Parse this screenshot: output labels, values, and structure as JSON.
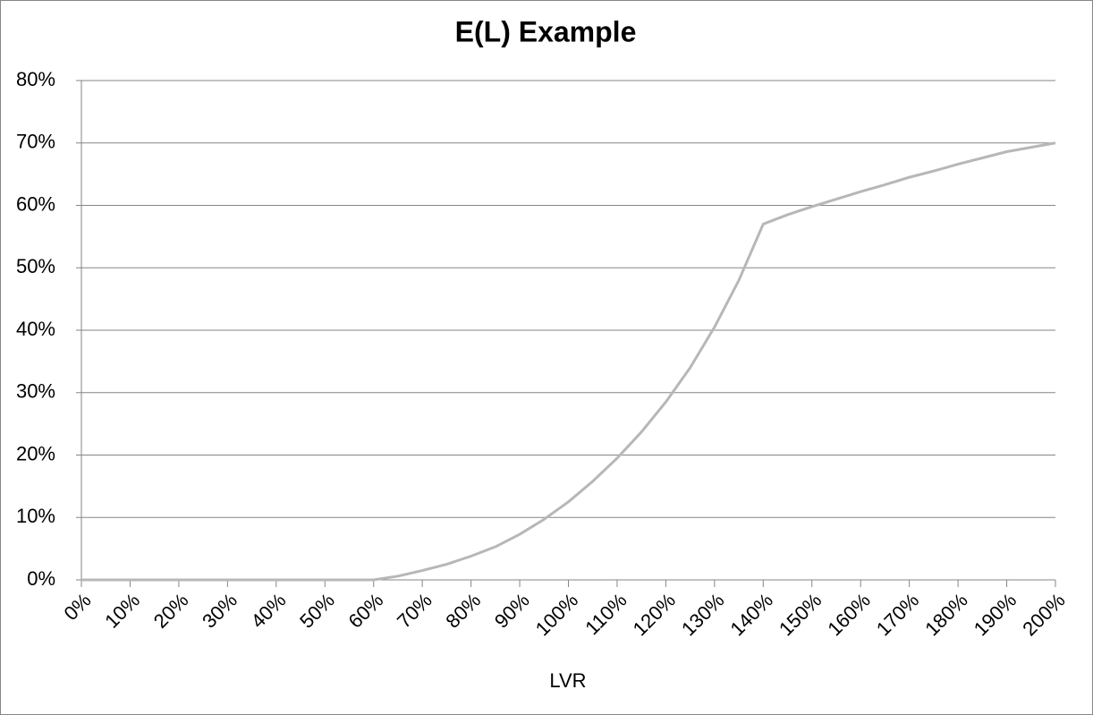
{
  "chart_data": {
    "type": "line",
    "title": "E(L) Example",
    "x_label": "LVR",
    "x": [
      0,
      5,
      10,
      15,
      20,
      25,
      30,
      35,
      40,
      45,
      50,
      55,
      60,
      65,
      70,
      75,
      80,
      85,
      90,
      95,
      100,
      105,
      110,
      115,
      120,
      125,
      130,
      135,
      140,
      145,
      150,
      155,
      160,
      165,
      170,
      175,
      180,
      185,
      190,
      195,
      200
    ],
    "series": [
      {
        "name": "E(L)",
        "color": "#b7b7b7",
        "values": [
          0,
          0,
          0,
          0,
          0,
          0,
          0,
          0,
          0,
          0,
          0,
          0,
          0,
          0.6,
          1.5,
          2.5,
          3.8,
          5.3,
          7.3,
          9.7,
          12.5,
          15.8,
          19.5,
          23.7,
          28.5,
          34,
          40.5,
          48,
          57,
          58.5,
          59.8,
          61,
          62.2,
          63.3,
          64.5,
          65.5,
          66.6,
          67.6,
          68.6,
          69.3,
          70
        ]
      }
    ],
    "xlim": [
      0,
      200
    ],
    "xticks": [
      {
        "value": 0,
        "label": "0%"
      },
      {
        "value": 10,
        "label": "10%"
      },
      {
        "value": 20,
        "label": "20%"
      },
      {
        "value": 30,
        "label": "30%"
      },
      {
        "value": 40,
        "label": "40%"
      },
      {
        "value": 50,
        "label": "50%"
      },
      {
        "value": 60,
        "label": "60%"
      },
      {
        "value": 70,
        "label": "70%"
      },
      {
        "value": 80,
        "label": "80%"
      },
      {
        "value": 90,
        "label": "90%"
      },
      {
        "value": 100,
        "label": "100%"
      },
      {
        "value": 110,
        "label": "110%"
      },
      {
        "value": 120,
        "label": "120%"
      },
      {
        "value": 130,
        "label": "130%"
      },
      {
        "value": 140,
        "label": "140%"
      },
      {
        "value": 150,
        "label": "150%"
      },
      {
        "value": 160,
        "label": "160%"
      },
      {
        "value": 170,
        "label": "170%"
      },
      {
        "value": 180,
        "label": "180%"
      },
      {
        "value": 190,
        "label": "190%"
      },
      {
        "value": 200,
        "label": "200%"
      }
    ],
    "ylim": [
      0,
      80
    ],
    "yticks": [
      {
        "value": 0,
        "label": "0%"
      },
      {
        "value": 10,
        "label": "10%"
      },
      {
        "value": 20,
        "label": "20%"
      },
      {
        "value": 30,
        "label": "30%"
      },
      {
        "value": 40,
        "label": "40%"
      },
      {
        "value": 50,
        "label": "50%"
      },
      {
        "value": 60,
        "label": "60%"
      },
      {
        "value": 70,
        "label": "70%"
      },
      {
        "value": 80,
        "label": "80%"
      }
    ],
    "grid": true
  }
}
